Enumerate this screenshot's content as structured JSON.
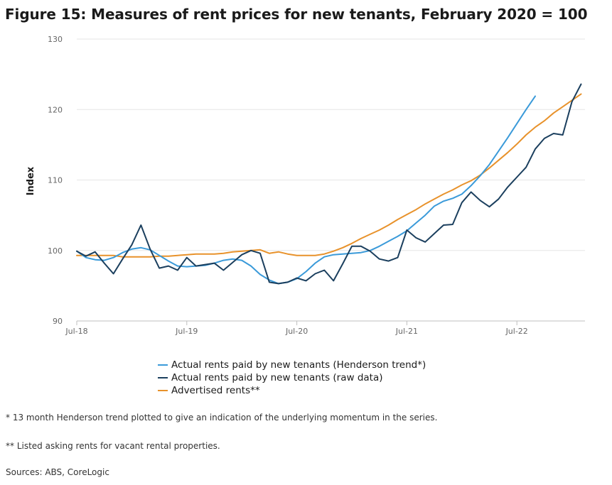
{
  "title": "Figure 15: Measures of rent prices for new tenants, February 2020 = 100",
  "chart_data": {
    "type": "line",
    "title": "Figure 15: Measures of rent prices for new tenants, February 2020 = 100",
    "xlabel": "",
    "ylabel": "Index",
    "ylim": [
      90,
      130
    ],
    "yticks": [
      "130",
      "120",
      "110",
      "100",
      "90"
    ],
    "ytick_values": [
      130,
      120,
      110,
      100,
      90
    ],
    "xticks": [
      "Jul-18",
      "Jul-19",
      "Jul-20",
      "Jul-21",
      "Jul-22"
    ],
    "xtick_index": [
      0,
      12,
      24,
      36,
      48
    ],
    "x_start": "Jul-18",
    "x_end": "Mar-23",
    "grid": "horizontal",
    "legend_position": "bottom",
    "series": [
      {
        "name": "Actual rents paid by new tenants (Henderson trend*)",
        "color": "#3a9ad9",
        "values": [
          99.9,
          99.0,
          98.7,
          98.6,
          99.0,
          99.7,
          100.2,
          100.4,
          100.1,
          99.3,
          98.5,
          97.8,
          97.7,
          97.8,
          97.9,
          98.2,
          98.6,
          98.8,
          98.6,
          97.8,
          96.6,
          95.8,
          95.3,
          95.5,
          96.0,
          97.0,
          98.2,
          99.1,
          99.4,
          99.5,
          99.6,
          99.7,
          100.0,
          100.6,
          101.3,
          102.0,
          102.8,
          103.9,
          105.0,
          106.3,
          107.0,
          107.4,
          108.0,
          109.2,
          110.6,
          112.2,
          114.1,
          116.0,
          118.0,
          120.0,
          121.9
        ]
      },
      {
        "name": "Actual rents paid by new tenants (raw data)",
        "color": "#1b3f5e",
        "values": [
          99.9,
          99.2,
          99.8,
          98.2,
          96.7,
          98.8,
          100.8,
          103.6,
          100.2,
          97.5,
          97.8,
          97.2,
          99.0,
          97.8,
          98.0,
          98.2,
          97.2,
          98.3,
          99.4,
          100.0,
          99.6,
          95.5,
          95.3,
          95.5,
          96.1,
          95.7,
          96.7,
          97.2,
          95.7,
          98.1,
          100.6,
          100.6,
          99.9,
          98.8,
          98.5,
          99.0,
          102.9,
          101.8,
          101.2,
          102.4,
          103.6,
          103.7,
          106.8,
          108.3,
          107.1,
          106.2,
          107.3,
          109.0,
          110.4,
          111.8,
          114.4,
          115.9,
          116.6,
          116.4,
          121.1,
          123.6
        ]
      },
      {
        "name": "Advertised rents**",
        "color": "#e8922b",
        "values": [
          99.3,
          99.3,
          99.3,
          99.3,
          99.3,
          99.1,
          99.1,
          99.1,
          99.1,
          99.2,
          99.2,
          99.3,
          99.4,
          99.5,
          99.5,
          99.5,
          99.6,
          99.8,
          99.9,
          100.0,
          100.1,
          99.6,
          99.8,
          99.5,
          99.3,
          99.3,
          99.3,
          99.5,
          99.9,
          100.4,
          101.0,
          101.7,
          102.3,
          102.9,
          103.6,
          104.4,
          105.1,
          105.8,
          106.6,
          107.3,
          108.0,
          108.6,
          109.3,
          109.9,
          110.7,
          111.7,
          112.8,
          113.9,
          115.1,
          116.4,
          117.5,
          118.4,
          119.5,
          120.4,
          121.3,
          122.2
        ]
      }
    ]
  },
  "notes": {
    "henderson": "* 13 month Henderson trend plotted to give an indication of the underlying momentum in the series.",
    "advertised": "** Listed asking rents for vacant rental properties.",
    "sources": "Sources: ABS, CoreLogic"
  }
}
